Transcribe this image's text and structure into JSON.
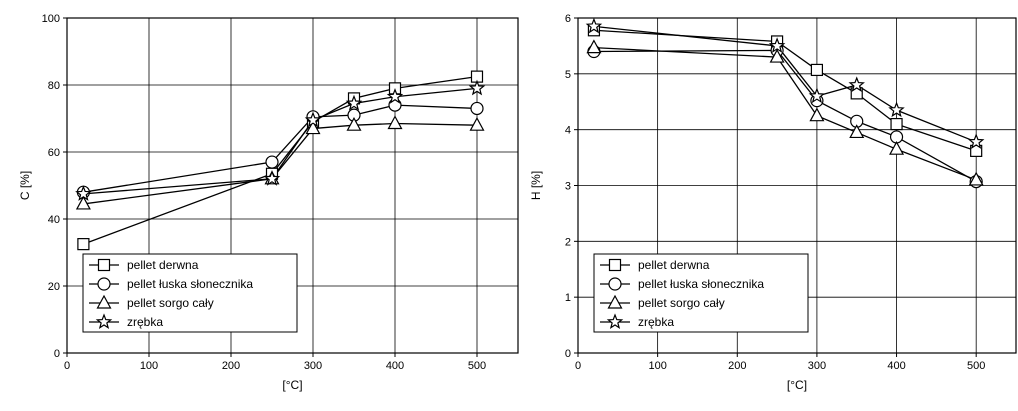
{
  "chart_data": [
    {
      "type": "line",
      "xlabel": "[°C]",
      "ylabel": "C [%]",
      "xlim": [
        0,
        550
      ],
      "ylim": [
        0,
        100
      ],
      "xticks": [
        0,
        100,
        200,
        300,
        400,
        500
      ],
      "yticks": [
        0,
        20,
        40,
        60,
        80,
        100
      ],
      "grid": true,
      "legend_position": "bottom-left",
      "series": [
        {
          "name": "pellet derwna",
          "marker": "square",
          "x": [
            20,
            250,
            300,
            350,
            400,
            500
          ],
          "y": [
            32.5,
            53.5,
            69,
            76,
            79,
            82.5
          ]
        },
        {
          "name": "pellet łuska słonecznika",
          "marker": "circle",
          "x": [
            20,
            250,
            300,
            350,
            400,
            500
          ],
          "y": [
            48,
            57,
            70.5,
            71,
            74,
            73
          ]
        },
        {
          "name": "pellet sorgo cały",
          "marker": "triangle",
          "x": [
            20,
            250,
            300,
            350,
            400,
            500
          ],
          "y": [
            44.5,
            52,
            67,
            68,
            68.5,
            68
          ]
        },
        {
          "name": "zrębka",
          "marker": "star",
          "x": [
            20,
            250,
            300,
            350,
            400,
            500
          ],
          "y": [
            47.5,
            52,
            69.5,
            74.5,
            76.5,
            79
          ]
        }
      ]
    },
    {
      "type": "line",
      "xlabel": "[°C]",
      "ylabel": "H [%]",
      "xlim": [
        0,
        550
      ],
      "ylim": [
        0,
        6
      ],
      "xticks": [
        0,
        100,
        200,
        300,
        400,
        500
      ],
      "yticks": [
        0,
        1,
        2,
        3,
        4,
        5,
        6
      ],
      "grid": true,
      "legend_position": "bottom-left",
      "series": [
        {
          "name": "pellet derwna",
          "marker": "square",
          "x": [
            20,
            250,
            300,
            350,
            400,
            500
          ],
          "y": [
            5.78,
            5.58,
            5.07,
            4.65,
            4.1,
            3.62
          ]
        },
        {
          "name": "pellet łuska słonecznika",
          "marker": "circle",
          "x": [
            20,
            250,
            300,
            350,
            400,
            500
          ],
          "y": [
            5.4,
            5.42,
            4.52,
            4.15,
            3.87,
            3.07
          ]
        },
        {
          "name": "pellet sorgo cały",
          "marker": "triangle",
          "x": [
            20,
            250,
            300,
            350,
            400,
            500
          ],
          "y": [
            5.47,
            5.3,
            4.25,
            3.95,
            3.65,
            3.1
          ]
        },
        {
          "name": "zrębka",
          "marker": "star",
          "x": [
            20,
            250,
            300,
            350,
            400,
            500
          ],
          "y": [
            5.85,
            5.5,
            4.6,
            4.8,
            4.35,
            3.78
          ]
        }
      ]
    }
  ]
}
